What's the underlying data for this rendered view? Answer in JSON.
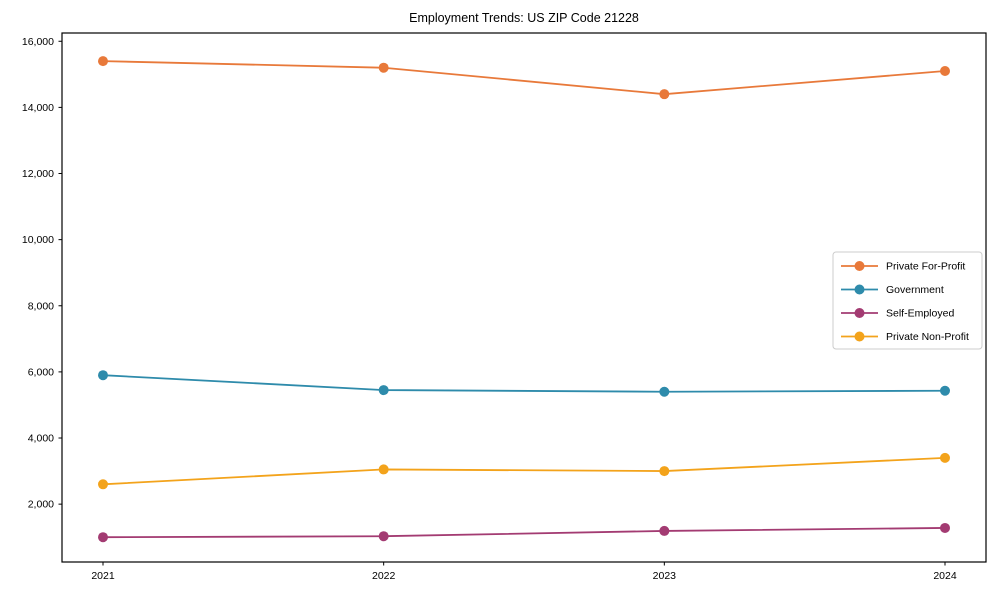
{
  "chart_data": {
    "type": "line",
    "title": "Employment Trends: US ZIP Code 21228",
    "xlabel": "",
    "ylabel": "",
    "x": [
      "2021",
      "2022",
      "2023",
      "2024"
    ],
    "series": [
      {
        "name": "Private For-Profit",
        "color": "#e8793a",
        "values": [
          15400,
          15200,
          14400,
          15100
        ]
      },
      {
        "name": "Government",
        "color": "#2e8bab",
        "values": [
          5900,
          5450,
          5400,
          5430
        ]
      },
      {
        "name": "Self-Employed",
        "color": "#a33b72",
        "values": [
          1000,
          1030,
          1190,
          1280
        ]
      },
      {
        "name": "Private Non-Profit",
        "color": "#f3a31b",
        "values": [
          2600,
          3050,
          3000,
          3400
        ]
      }
    ],
    "yticks": [
      2000,
      4000,
      6000,
      8000,
      10000,
      12000,
      14000,
      16000
    ],
    "ytick_labels": [
      "2,000",
      "4,000",
      "6,000",
      "8,000",
      "10,000",
      "12,000",
      "14,000",
      "16,000"
    ],
    "ylim": [
      250,
      16250
    ],
    "grid": false,
    "marker": "circle",
    "legend_position": "center right",
    "legend_border_color": "#cccccc",
    "axis_color": "#000000"
  }
}
